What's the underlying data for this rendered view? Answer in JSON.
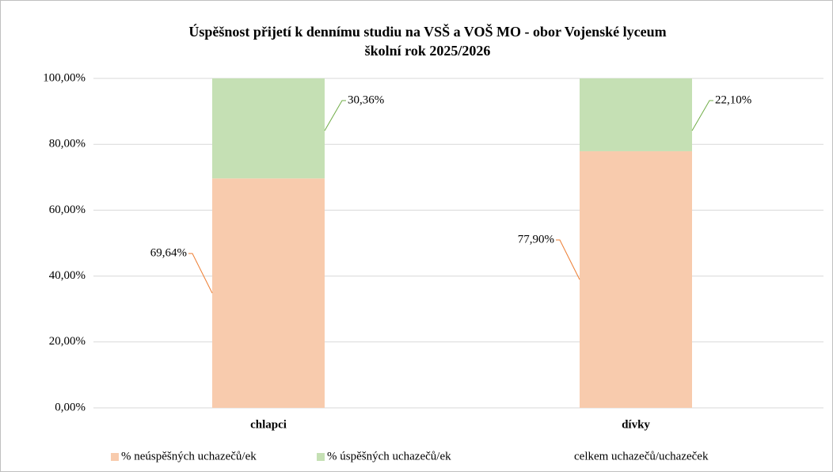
{
  "chart_data": {
    "type": "stacked_bar",
    "title": "Úspěšnost přijetí k dennímu studiu na VSŠ a VOŠ MO - obor Vojenské lyceum",
    "subtitle": "školní rok 2025/2026",
    "categories": [
      "chlapci",
      "dívky"
    ],
    "series": [
      {
        "name": "% neúspěšných uchazečů/ek",
        "color": "#f8cbad",
        "values": [
          69.64,
          77.9
        ],
        "value_labels": [
          "69,64%",
          "77,90%"
        ]
      },
      {
        "name": "% úspěšných uchazečů/ek",
        "color": "#c5e0b4",
        "values": [
          30.36,
          22.1
        ],
        "value_labels": [
          "30,36%",
          "22,10%"
        ]
      },
      {
        "name": "celkem uchazečů/uchazeček",
        "color": null,
        "values": [
          null,
          null
        ]
      }
    ],
    "ylim": [
      0,
      100
    ],
    "yticks": [
      {
        "value": 0,
        "label": "0,00%"
      },
      {
        "value": 20,
        "label": "20,00%"
      },
      {
        "value": 40,
        "label": "40,00%"
      },
      {
        "value": 60,
        "label": "60,00%"
      },
      {
        "value": 80,
        "label": "80,00%"
      },
      {
        "value": 100,
        "label": "100,00%"
      }
    ],
    "grid": true,
    "legend": "bottom"
  }
}
